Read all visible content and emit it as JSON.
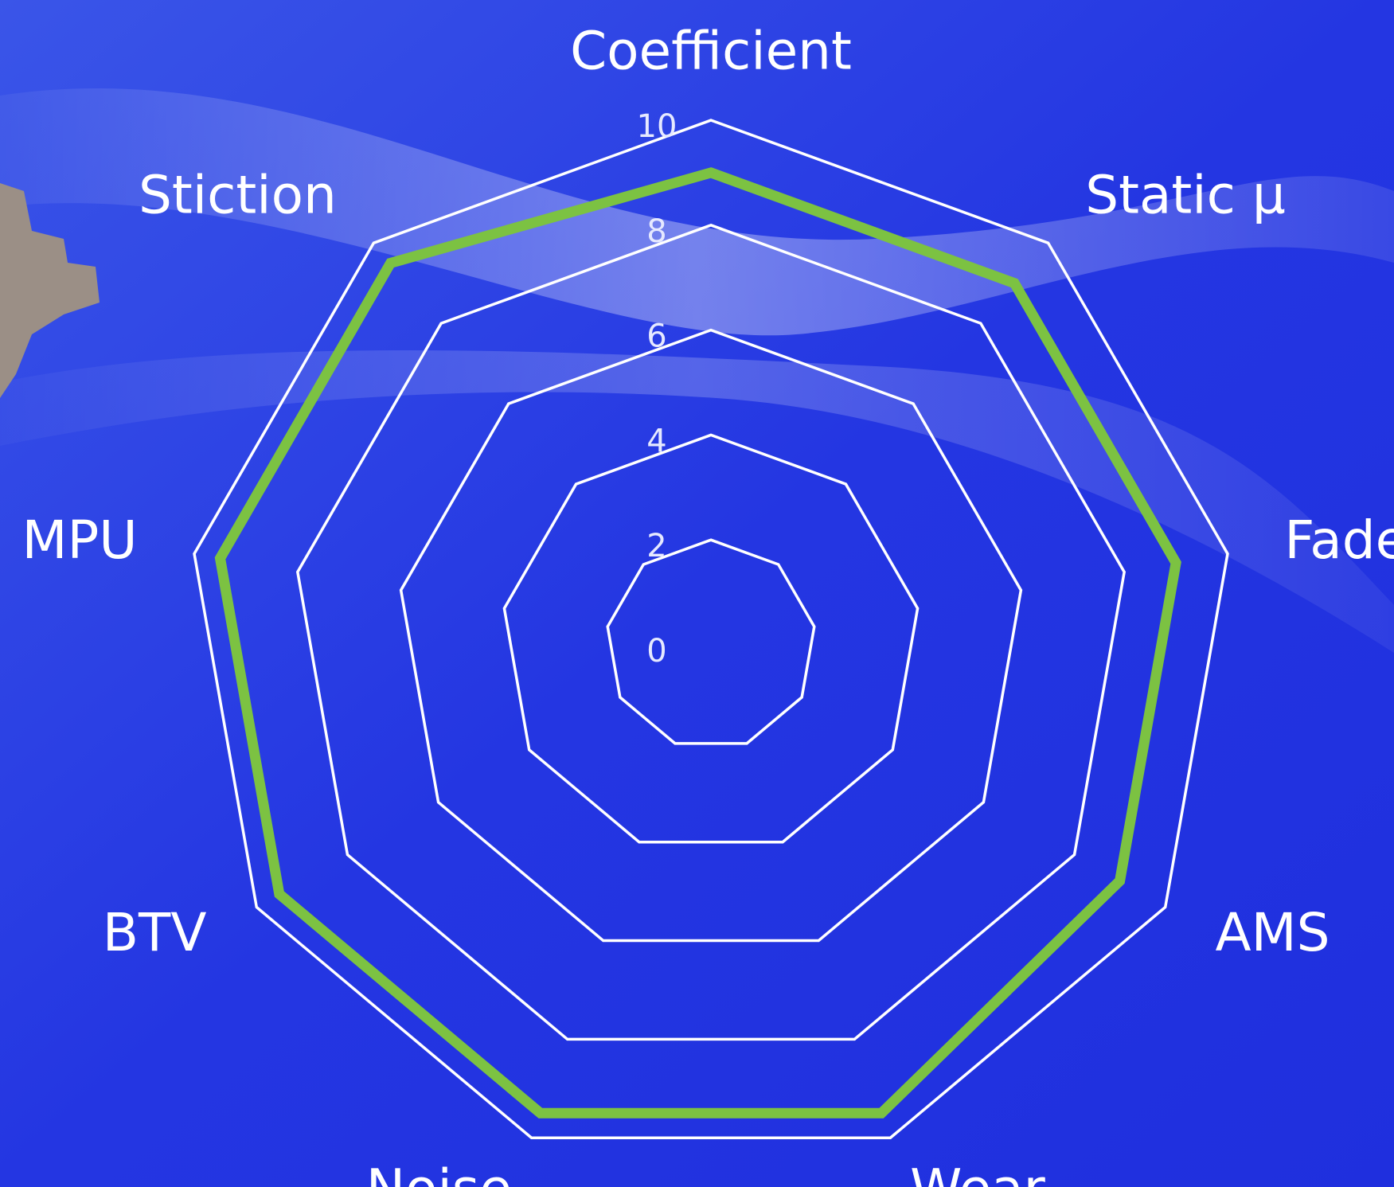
{
  "chart_data": {
    "type": "radar",
    "categories": [
      "Coefficient",
      "Static μ",
      "Fade",
      "AMS",
      "Wear",
      "Noise",
      "BTV",
      "MPU",
      "Stiction"
    ],
    "series": [
      {
        "color": "#7cc242",
        "values": [
          9,
          9,
          9,
          9,
          9.5,
          9.5,
          9.5,
          9.5,
          9.5
        ]
      }
    ],
    "rlim": [
      0,
      10
    ],
    "rticks": [
      0,
      2,
      4,
      6,
      8,
      10
    ],
    "grid_color": "#ffffff"
  }
}
